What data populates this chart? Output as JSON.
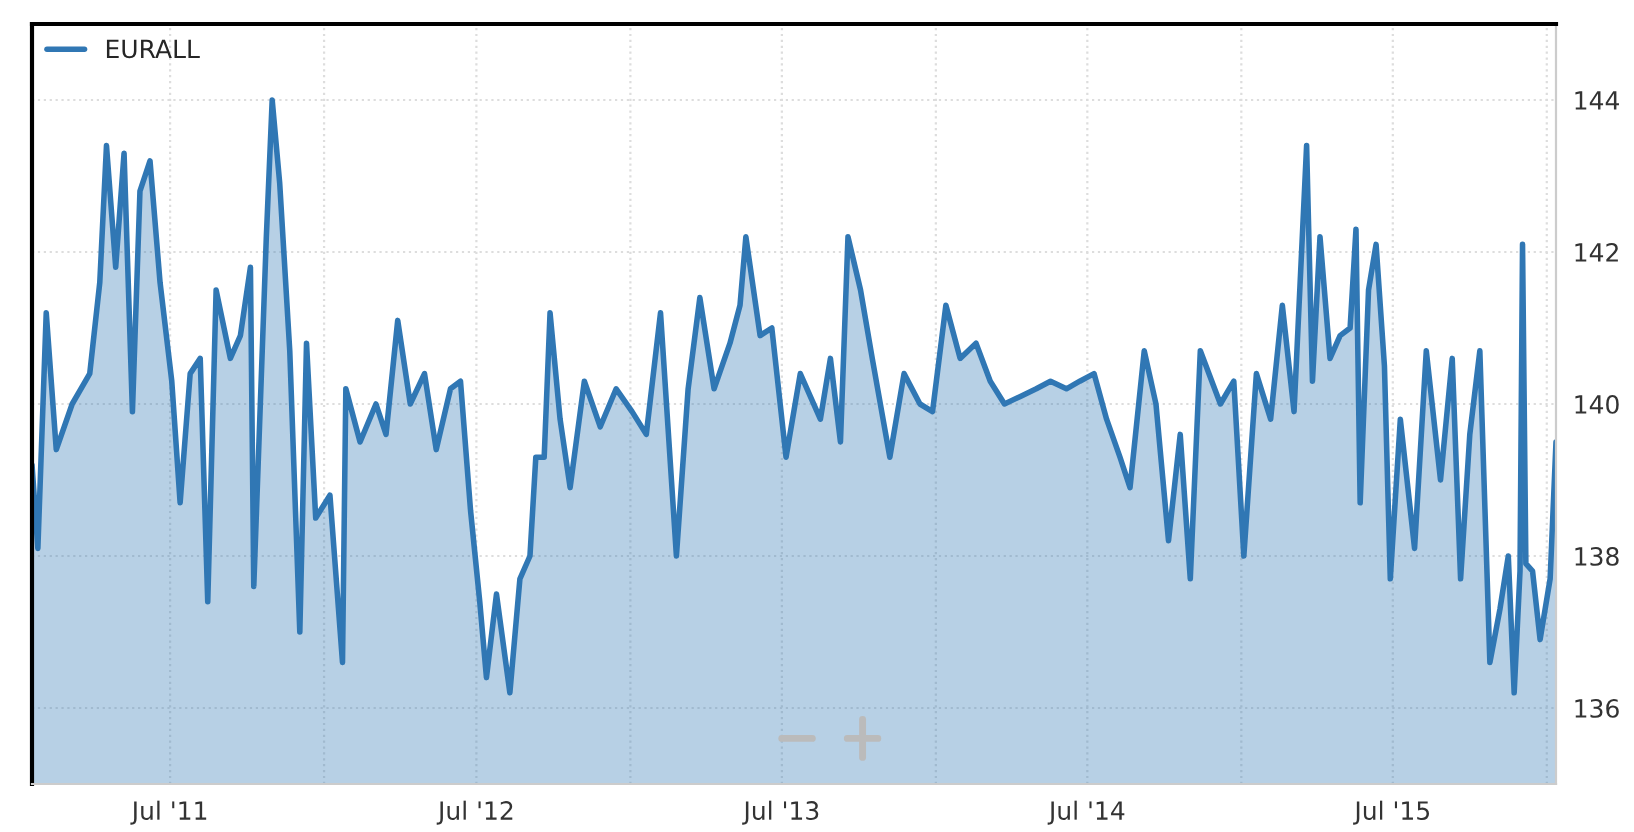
{
  "chart_data": {
    "type": "area",
    "series": [
      {
        "name": "EURALL",
        "color": "#3077b4",
        "x": [
          "2011-01-17",
          "2011-01-24",
          "2011-02-03",
          "2011-02-15",
          "2011-03-06",
          "2011-03-27",
          "2011-04-08",
          "2011-04-16",
          "2011-04-27",
          "2011-05-07",
          "2011-05-17",
          "2011-05-26",
          "2011-06-07",
          "2011-06-19",
          "2011-07-03",
          "2011-07-13",
          "2011-07-25",
          "2011-08-06",
          "2011-08-15",
          "2011-08-25",
          "2011-09-11",
          "2011-09-23",
          "2011-10-05",
          "2011-10-09",
          "2011-10-24",
          "2011-10-31",
          "2011-11-09",
          "2011-11-21",
          "2011-12-03",
          "2011-12-11",
          "2011-12-22",
          "2012-01-08",
          "2012-01-23",
          "2012-01-27",
          "2012-02-13",
          "2012-03-03",
          "2012-03-15",
          "2012-03-29",
          "2012-04-13",
          "2012-04-30",
          "2012-05-14",
          "2012-05-31",
          "2012-06-12",
          "2012-06-24",
          "2012-07-05",
          "2012-07-13",
          "2012-07-25",
          "2012-08-10",
          "2012-08-22",
          "2012-09-03",
          "2012-09-10",
          "2012-09-20",
          "2012-09-27",
          "2012-10-09",
          "2012-10-21",
          "2012-11-07",
          "2012-11-26",
          "2012-12-15",
          "2013-01-03",
          "2013-01-20",
          "2013-02-06",
          "2013-02-25",
          "2013-03-11",
          "2013-03-25",
          "2013-04-11",
          "2013-04-30",
          "2013-05-12",
          "2013-05-19",
          "2013-06-05",
          "2013-06-19",
          "2013-07-06",
          "2013-07-23",
          "2013-08-16",
          "2013-08-28",
          "2013-09-09",
          "2013-09-18",
          "2013-10-03",
          "2013-10-17",
          "2013-11-07",
          "2013-11-24",
          "2013-12-13",
          "2013-12-28",
          "2014-01-13",
          "2014-01-30",
          "2014-02-18",
          "2014-03-07",
          "2014-03-24",
          "2014-04-12",
          "2014-05-01",
          "2014-05-18",
          "2014-06-06",
          "2014-06-22",
          "2014-07-09",
          "2014-07-24",
          "2014-08-09",
          "2014-08-21",
          "2014-09-07",
          "2014-09-21",
          "2014-10-06",
          "2014-10-20",
          "2014-11-01",
          "2014-11-13",
          "2014-12-07",
          "2014-12-23",
          "2015-01-04",
          "2015-01-19",
          "2015-02-05",
          "2015-02-19",
          "2015-03-05",
          "2015-03-20",
          "2015-03-27",
          "2015-04-05",
          "2015-04-17",
          "2015-04-29",
          "2015-05-11",
          "2015-05-18",
          "2015-05-23",
          "2015-06-02",
          "2015-06-11",
          "2015-06-21",
          "2015-06-28",
          "2015-07-10",
          "2015-07-27",
          "2015-08-10",
          "2015-08-27",
          "2015-09-10",
          "2015-09-20",
          "2015-10-01",
          "2015-10-13",
          "2015-10-25",
          "2015-11-06",
          "2015-11-16",
          "2015-11-23",
          "2015-11-30",
          "2015-12-03",
          "2015-12-07",
          "2015-12-15",
          "2015-12-24",
          "2016-01-05",
          "2016-01-12"
        ],
        "values": [
          139.2,
          138.1,
          141.2,
          139.4,
          140.0,
          140.4,
          141.6,
          143.4,
          141.8,
          143.3,
          139.9,
          142.8,
          143.2,
          141.6,
          140.3,
          138.7,
          140.4,
          140.6,
          137.4,
          141.5,
          140.6,
          140.9,
          141.8,
          137.6,
          142.2,
          144.0,
          142.9,
          140.7,
          137.0,
          140.8,
          138.5,
          138.8,
          136.6,
          140.2,
          139.5,
          140.0,
          139.6,
          141.1,
          140.0,
          140.4,
          139.4,
          140.2,
          140.3,
          138.6,
          137.4,
          136.4,
          137.5,
          136.2,
          137.7,
          138.0,
          139.3,
          139.3,
          141.2,
          139.8,
          138.9,
          140.3,
          139.7,
          140.2,
          139.9,
          139.6,
          141.2,
          138.0,
          140.2,
          141.4,
          140.2,
          140.8,
          141.3,
          142.2,
          140.9,
          141.0,
          139.3,
          140.4,
          139.8,
          140.6,
          139.5,
          142.2,
          141.5,
          140.6,
          139.3,
          140.4,
          140.0,
          139.9,
          141.3,
          140.6,
          140.8,
          140.3,
          140.0,
          140.1,
          140.2,
          140.3,
          140.2,
          140.3,
          140.4,
          139.8,
          139.3,
          138.9,
          140.7,
          140.0,
          138.2,
          139.6,
          137.7,
          140.7,
          140.0,
          140.3,
          138.0,
          140.4,
          139.8,
          141.3,
          139.9,
          143.4,
          140.3,
          142.2,
          140.6,
          140.9,
          141.0,
          142.3,
          138.7,
          141.5,
          142.1,
          140.5,
          137.7,
          139.8,
          138.1,
          140.7,
          139.0,
          140.6,
          137.7,
          139.6,
          140.7,
          136.6,
          137.3,
          138.0,
          136.2,
          137.8,
          142.1,
          137.9,
          137.8,
          136.9,
          137.7,
          139.5
        ]
      }
    ],
    "xlim": [
      "2011-01-17",
      "2016-01-12"
    ],
    "xticks": [
      {
        "value": "2011-07-01",
        "label": "Jul '11"
      },
      {
        "value": "2012-01-01",
        "label": null
      },
      {
        "value": "2012-07-01",
        "label": "Jul '12"
      },
      {
        "value": "2013-01-01",
        "label": null
      },
      {
        "value": "2013-07-01",
        "label": "Jul '13"
      },
      {
        "value": "2014-01-01",
        "label": null
      },
      {
        "value": "2014-07-01",
        "label": "Jul '14"
      },
      {
        "value": "2015-01-01",
        "label": null
      },
      {
        "value": "2015-07-01",
        "label": "Jul '15"
      },
      {
        "value": "2016-01-01",
        "label": null
      }
    ],
    "ylim": [
      135,
      145
    ],
    "yticks": [
      136,
      138,
      140,
      142,
      144
    ],
    "grid": true,
    "legend": "top left",
    "marker": "none",
    "line_style": "solid"
  }
}
